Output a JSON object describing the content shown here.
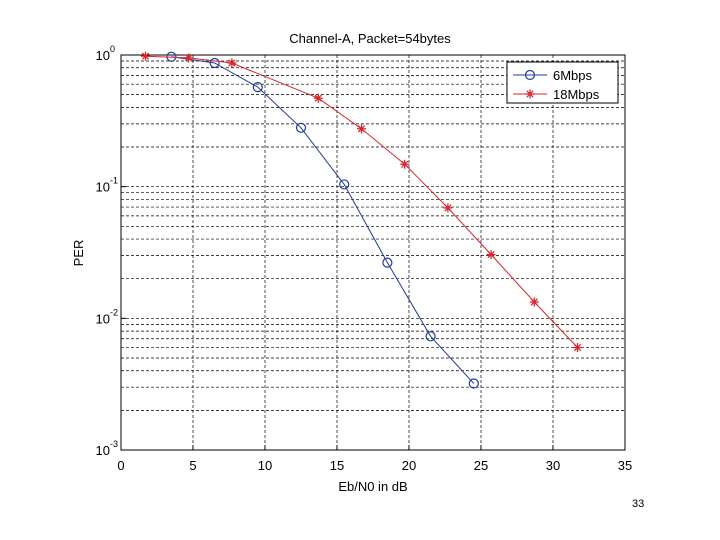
{
  "slide": {
    "page_number": "33"
  },
  "chart_data": {
    "type": "line",
    "title": "Channel-A, Packet=54bytes",
    "xlabel": "Eb/N0 in dB",
    "ylabel": "PER",
    "xlim": [
      0,
      35
    ],
    "ylim": [
      0.001,
      1
    ],
    "yscale": "log",
    "grid": true,
    "legend_position": "top-right",
    "x_ticks": [
      "0",
      "5",
      "10",
      "15",
      "20",
      "25",
      "30",
      "35"
    ],
    "y_ticks": [
      {
        "base": "10",
        "exp": "0"
      },
      {
        "base": "10",
        "exp": "-1"
      },
      {
        "base": "10",
        "exp": "-2"
      },
      {
        "base": "10",
        "exp": "-3"
      }
    ],
    "series": [
      {
        "name": "6Mbps",
        "color": "#1f3c9b",
        "marker": "circle",
        "x": [
          3.5,
          6.5,
          9.5,
          12.5,
          15.5,
          18.5,
          21.5,
          24.5
        ],
        "y": [
          0.97,
          0.87,
          0.57,
          0.28,
          0.104,
          0.0265,
          0.0073,
          0.0032
        ]
      },
      {
        "name": "18Mbps",
        "color": "#d8262c",
        "marker": "star",
        "x": [
          1.7,
          4.7,
          7.7,
          13.7,
          16.7,
          19.7,
          22.7,
          25.7,
          28.7,
          31.7
        ],
        "y": [
          0.98,
          0.95,
          0.87,
          0.47,
          0.275,
          0.148,
          0.069,
          0.0305,
          0.0133,
          0.006
        ]
      }
    ]
  }
}
